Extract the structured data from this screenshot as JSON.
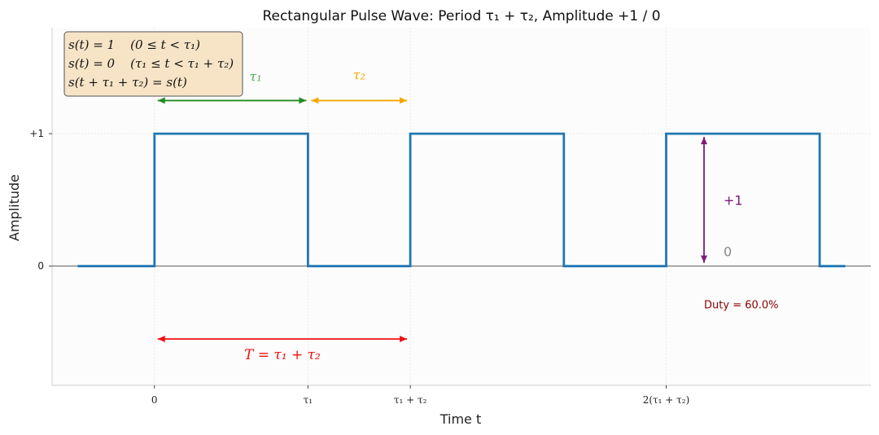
{
  "chart_data": {
    "type": "line",
    "title": "Rectangular Pulse Wave: Period τ₁ + τ₂, Amplitude +1 / 0",
    "xlabel": "Time t",
    "ylabel": "Amplitude",
    "tau1": 1.5,
    "tau2": 1.0,
    "xlim": [
      -1.0,
      7.0
    ],
    "ylim": [
      -0.9,
      1.8
    ],
    "series": [
      {
        "x": [
          -0.75,
          0,
          0,
          1.5,
          1.5,
          2.5,
          2.5,
          4.0,
          4.0,
          5.0,
          5.0,
          6.5,
          6.5,
          6.75
        ],
        "y": [
          0,
          0,
          1,
          1,
          0,
          0,
          1,
          1,
          0,
          0,
          1,
          1,
          0,
          0
        ],
        "color": "#1f77b4"
      }
    ],
    "xticks": [
      {
        "value": 0,
        "label": "0"
      },
      {
        "value": 1.5,
        "label": "τ₁"
      },
      {
        "value": 2.5,
        "label": "τ₁ + τ₂"
      },
      {
        "value": 5.0,
        "label": "2(τ₁ + τ₂)"
      }
    ],
    "yticks": [
      {
        "value": 0,
        "label": "0"
      },
      {
        "value": 1,
        "label": "+1"
      }
    ],
    "annotations": {
      "tau1": {
        "label": "τ₁",
        "from": 0,
        "to": 1.5,
        "y": 1.25,
        "color": "#228b22"
      },
      "tau2": {
        "label": "τ₂",
        "from": 1.5,
        "to": 2.5,
        "y": 1.25,
        "color": "#f5a800"
      },
      "period": {
        "label": "T = τ₁ + τ₂",
        "from": 0,
        "to": 2.5,
        "y": -0.55,
        "color": "#ee1111"
      },
      "amplitude": {
        "x": 5.37,
        "from": 0,
        "to": 1,
        "label_high": "+1",
        "label_low": "0",
        "color": "#7b1a80",
        "low_color": "#888888"
      },
      "duty": {
        "label": "Duty = 60.0%",
        "x": 5.37,
        "y": -0.32,
        "color": "#8b0000"
      }
    },
    "equations": [
      "s(t) = 1    (0 ≤ t < τ₁)",
      "s(t) = 0    (τ₁ ≤ t < τ₁ + τ₂)",
      "s(t + τ₁ + τ₂) = s(t)"
    ],
    "grid": true
  }
}
